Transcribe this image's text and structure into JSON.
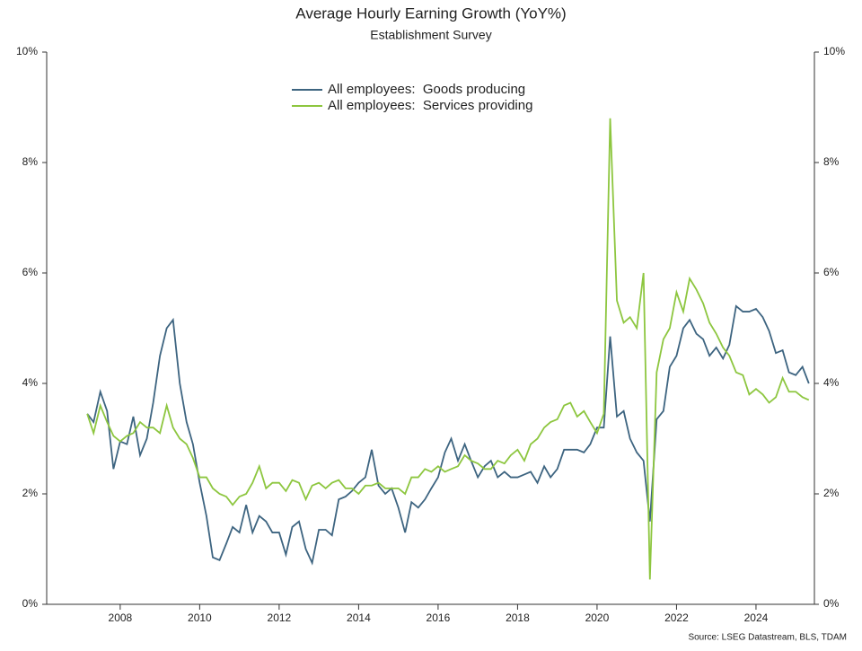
{
  "chart_data": {
    "type": "line",
    "title": "Average Hourly Earning Growth (YoY%)",
    "subtitle": "Establishment Survey",
    "source": "Source: LSEG Datastream, BLS, TDAM",
    "legend": "top",
    "xlim": [
      2006.15,
      2025.47
    ],
    "xticks": [
      2008,
      2010,
      2012,
      2014,
      2016,
      2018,
      2020,
      2022,
      2024
    ],
    "ylim": [
      0,
      10
    ],
    "yticks": [
      {
        "value": 0,
        "label": "0%"
      },
      {
        "value": 2,
        "label": "2%"
      },
      {
        "value": 4,
        "label": "4%"
      },
      {
        "value": 6,
        "label": "6%"
      },
      {
        "value": 8,
        "label": "8%"
      },
      {
        "value": 10,
        "label": "10%"
      }
    ],
    "x": [
      2007.17,
      2007.33,
      2007.5,
      2007.67,
      2007.83,
      2008,
      2008.17,
      2008.33,
      2008.5,
      2008.67,
      2008.83,
      2009,
      2009.17,
      2009.33,
      2009.5,
      2009.67,
      2009.83,
      2010,
      2010.17,
      2010.33,
      2010.5,
      2010.67,
      2010.83,
      2011,
      2011.17,
      2011.33,
      2011.5,
      2011.67,
      2011.83,
      2012,
      2012.17,
      2012.33,
      2012.5,
      2012.67,
      2012.83,
      2013,
      2013.17,
      2013.33,
      2013.5,
      2013.67,
      2013.83,
      2014,
      2014.17,
      2014.33,
      2014.5,
      2014.67,
      2014.83,
      2015,
      2015.17,
      2015.33,
      2015.5,
      2015.67,
      2015.83,
      2016,
      2016.17,
      2016.33,
      2016.5,
      2016.67,
      2016.83,
      2017,
      2017.17,
      2017.33,
      2017.5,
      2017.67,
      2017.83,
      2018,
      2018.17,
      2018.33,
      2018.5,
      2018.67,
      2018.83,
      2019,
      2019.17,
      2019.33,
      2019.5,
      2019.67,
      2019.83,
      2020,
      2020.17,
      2020.33,
      2020.5,
      2020.67,
      2020.83,
      2021,
      2021.17,
      2021.33,
      2021.5,
      2021.67,
      2021.83,
      2022,
      2022.17,
      2022.33,
      2022.5,
      2022.67,
      2022.83,
      2023,
      2023.17,
      2023.33,
      2023.5,
      2023.67,
      2023.83,
      2024,
      2024.17,
      2024.33,
      2024.5,
      2024.67,
      2024.83,
      2025,
      2025.17,
      2025.33
    ],
    "series": [
      {
        "name": "All employees:  Goods producing",
        "color": "#3d6480",
        "values": [
          3.45,
          3.3,
          3.85,
          3.5,
          2.45,
          2.95,
          2.9,
          3.4,
          2.7,
          3.0,
          3.65,
          4.5,
          5.0,
          5.15,
          4.0,
          3.3,
          2.9,
          2.2,
          1.6,
          0.85,
          0.8,
          1.1,
          1.4,
          1.3,
          1.8,
          1.3,
          1.6,
          1.5,
          1.3,
          1.3,
          0.9,
          1.4,
          1.5,
          1.0,
          0.75,
          1.35,
          1.35,
          1.25,
          1.9,
          1.95,
          2.05,
          2.2,
          2.3,
          2.8,
          2.15,
          2.0,
          2.1,
          1.75,
          1.3,
          1.85,
          1.75,
          1.9,
          2.1,
          2.3,
          2.75,
          3.0,
          2.6,
          2.9,
          2.6,
          2.3,
          2.5,
          2.6,
          2.3,
          2.4,
          2.3,
          2.3,
          2.35,
          2.4,
          2.2,
          2.5,
          2.3,
          2.45,
          2.8,
          2.8,
          2.8,
          2.75,
          2.9,
          3.2,
          3.2,
          4.85,
          3.4,
          3.5,
          3.0,
          2.75,
          2.6,
          1.5,
          3.35,
          3.5,
          4.3,
          4.5,
          5.0,
          5.15,
          4.9,
          4.8,
          4.5,
          4.65,
          4.45,
          4.7,
          5.4,
          5.3,
          5.3,
          5.35,
          5.2,
          4.95,
          4.55,
          4.6,
          4.2,
          4.15,
          4.3,
          4.0
        ]
      },
      {
        "name": "All employees:  Services providing",
        "color": "#8dc63f",
        "values": [
          3.45,
          3.1,
          3.6,
          3.3,
          3.05,
          2.95,
          3.05,
          3.1,
          3.3,
          3.2,
          3.2,
          3.1,
          3.6,
          3.2,
          3.0,
          2.9,
          2.65,
          2.3,
          2.3,
          2.1,
          2.0,
          1.95,
          1.8,
          1.95,
          2.0,
          2.2,
          2.5,
          2.1,
          2.2,
          2.2,
          2.05,
          2.25,
          2.2,
          1.9,
          2.15,
          2.2,
          2.1,
          2.2,
          2.25,
          2.1,
          2.1,
          2.0,
          2.15,
          2.15,
          2.2,
          2.1,
          2.1,
          2.1,
          2.0,
          2.3,
          2.3,
          2.45,
          2.4,
          2.5,
          2.4,
          2.45,
          2.5,
          2.7,
          2.6,
          2.55,
          2.45,
          2.45,
          2.6,
          2.55,
          2.7,
          2.8,
          2.6,
          2.9,
          3.0,
          3.2,
          3.3,
          3.35,
          3.6,
          3.65,
          3.4,
          3.5,
          3.3,
          3.1,
          3.45,
          8.8,
          5.5,
          5.1,
          5.2,
          5.0,
          6.0,
          0.45,
          4.2,
          4.8,
          5.0,
          5.65,
          5.3,
          5.9,
          5.7,
          5.45,
          5.1,
          4.9,
          4.65,
          4.5,
          4.2,
          4.15,
          3.8,
          3.9,
          3.8,
          3.65,
          3.75,
          4.1,
          3.85,
          3.85,
          3.75,
          3.7
        ]
      }
    ]
  }
}
